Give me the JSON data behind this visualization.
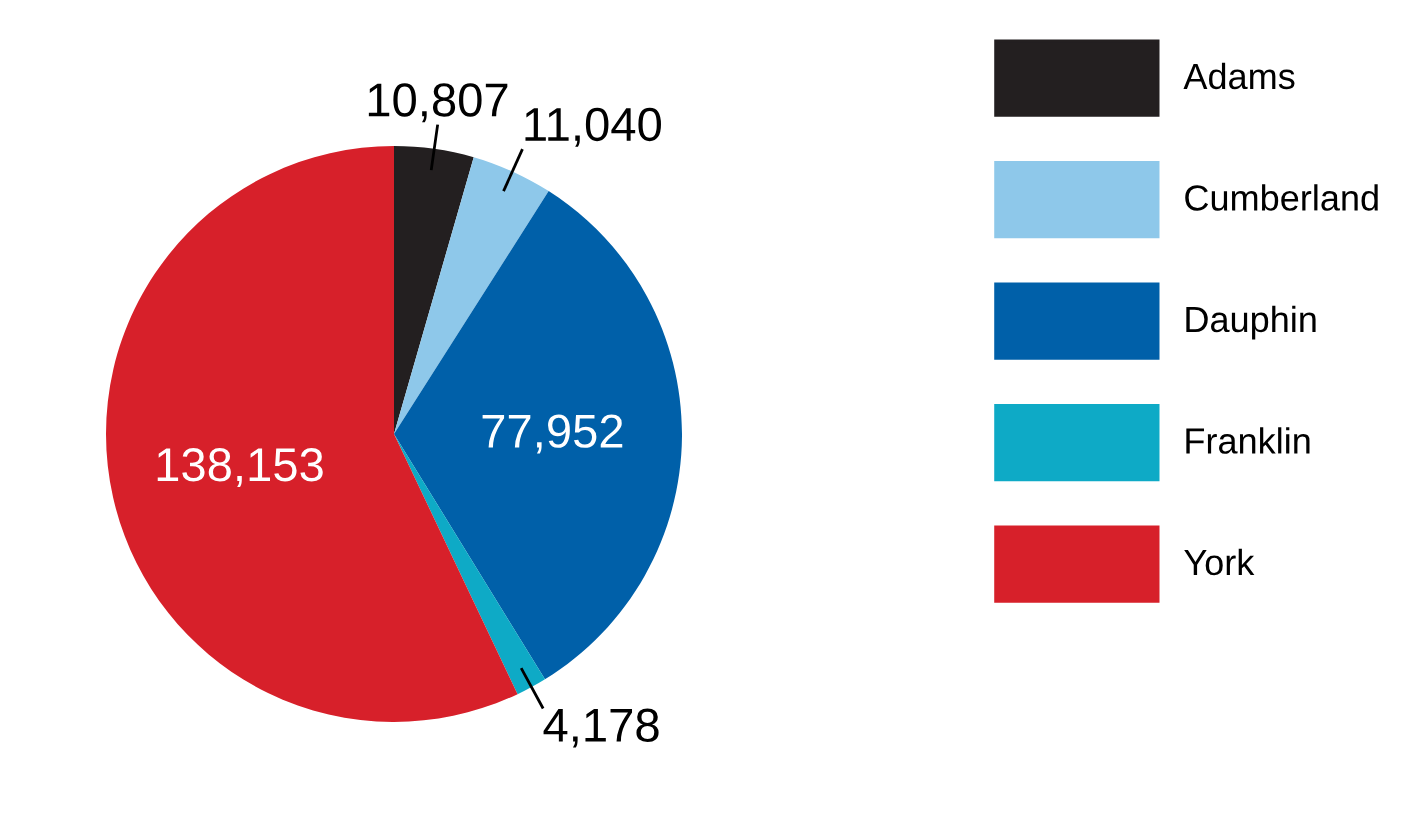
{
  "chart_data": {
    "type": "pie",
    "categories": [
      "Adams",
      "Cumberland",
      "Dauphin",
      "Franklin",
      "York"
    ],
    "values": [
      10807,
      11040,
      77952,
      4178,
      138153
    ],
    "colors": [
      "#231f20",
      "#8ec8ea",
      "#0060a9",
      "#0eaac6",
      "#d7202a"
    ],
    "value_labels": [
      "10,807",
      "11,040",
      "77,952",
      "4,178",
      "138,153"
    ],
    "legend": "right"
  }
}
